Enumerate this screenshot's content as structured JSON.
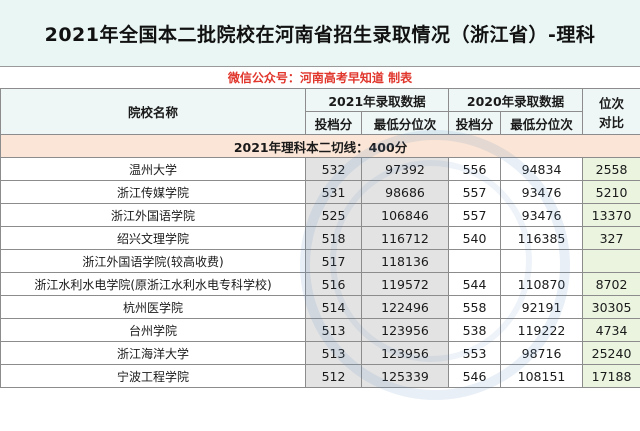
{
  "title": "2021年全国本二批院校在河南省招生录取情况（浙江省）-理科",
  "credit": "微信公众号：河南高考早知道 制表",
  "header": {
    "school_col": "院校名称",
    "y2021": "2021年录取数据",
    "y2020": "2020年录取数据",
    "rank_cmp_line1": "位次",
    "rank_cmp_line2": "对比",
    "score": "投档分",
    "min_rank": "最低分位次"
  },
  "cutoff_line": "2021年理科本二切线：400分",
  "rows": [
    {
      "name": "温州大学",
      "s21": "532",
      "r21": "97392",
      "s20": "556",
      "r20": "94834",
      "diff": "2558"
    },
    {
      "name": "浙江传媒学院",
      "s21": "531",
      "r21": "98686",
      "s20": "557",
      "r20": "93476",
      "diff": "5210"
    },
    {
      "name": "浙江外国语学院",
      "s21": "525",
      "r21": "106846",
      "s20": "557",
      "r20": "93476",
      "diff": "13370"
    },
    {
      "name": "绍兴文理学院",
      "s21": "518",
      "r21": "116712",
      "s20": "540",
      "r20": "116385",
      "diff": "327"
    },
    {
      "name": "浙江外国语学院(较高收费)",
      "s21": "517",
      "r21": "118136",
      "s20": "",
      "r20": "",
      "diff": ""
    },
    {
      "name": "浙江水利水电学院(原浙江水利水电专科学校)",
      "s21": "516",
      "r21": "119572",
      "s20": "544",
      "r20": "110870",
      "diff": "8702"
    },
    {
      "name": "杭州医学院",
      "s21": "514",
      "r21": "122496",
      "s20": "558",
      "r20": "92191",
      "diff": "30305"
    },
    {
      "name": "台州学院",
      "s21": "513",
      "r21": "123956",
      "s20": "538",
      "r20": "119222",
      "diff": "4734"
    },
    {
      "name": "浙江海洋大学",
      "s21": "513",
      "r21": "123956",
      "s20": "553",
      "r20": "98716",
      "diff": "25240"
    },
    {
      "name": "宁波工程学院",
      "s21": "512",
      "r21": "125339",
      "s20": "546",
      "r20": "108151",
      "diff": "17188"
    }
  ],
  "colors": {
    "title_bg": "#eaf6f4",
    "credit_text": "#e0362c",
    "cutoff_bg": "#fbe5d6",
    "gray_cell": "#e3e3e3",
    "green_cell": "#eaf4df"
  }
}
